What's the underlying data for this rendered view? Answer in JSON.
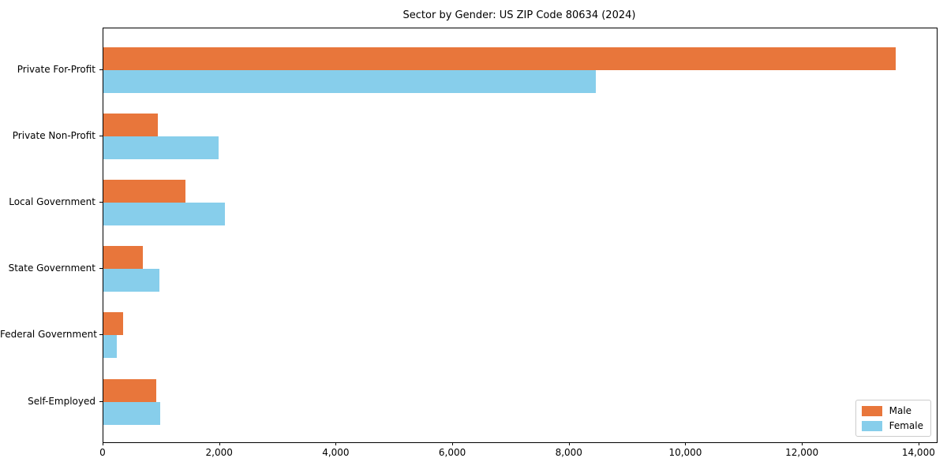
{
  "chart_data": {
    "type": "bar",
    "orientation": "horizontal",
    "title": "Sector by Gender: US ZIP Code 80634 (2024)",
    "categories": [
      "Private For-Profit",
      "Private Non-Profit",
      "Local Government",
      "State Government",
      "Federal Government",
      "Self-Employed"
    ],
    "series": [
      {
        "name": "Male",
        "color": "#e8763b",
        "values": [
          13600,
          930,
          1410,
          680,
          340,
          910
        ]
      },
      {
        "name": "Female",
        "color": "#87ceeb",
        "values": [
          8450,
          1980,
          2090,
          960,
          230,
          980
        ]
      }
    ],
    "xlabel": "",
    "ylabel": "",
    "xlim": [
      0,
      14300
    ],
    "x_ticks": [
      {
        "value": 0,
        "label": "0"
      },
      {
        "value": 2000,
        "label": "2,000"
      },
      {
        "value": 4000,
        "label": "4,000"
      },
      {
        "value": 6000,
        "label": "6,000"
      },
      {
        "value": 8000,
        "label": "8,000"
      },
      {
        "value": 10000,
        "label": "10,000"
      },
      {
        "value": 12000,
        "label": "12,000"
      },
      {
        "value": 14000,
        "label": "14,000"
      }
    ],
    "legend_position": "lower right",
    "grid": false,
    "background_color": "#ffffff",
    "spine_color": "#000000"
  }
}
